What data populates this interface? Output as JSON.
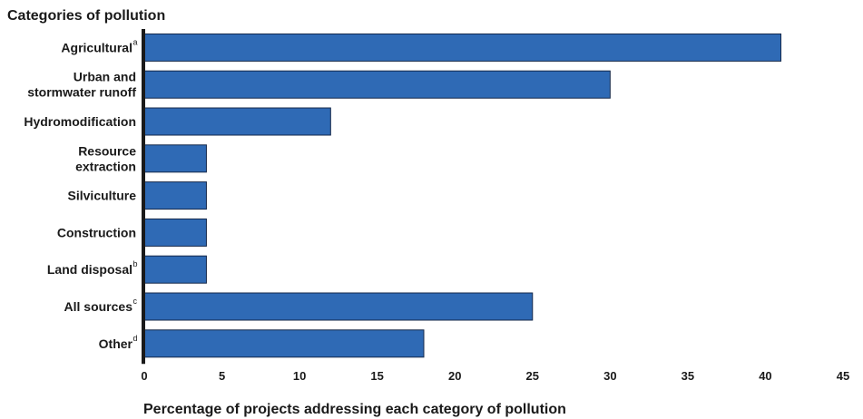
{
  "chart_data": {
    "type": "bar",
    "orientation": "horizontal",
    "title": "Categories of pollution",
    "xlabel": "Percentage of projects addressing each category of pollution",
    "xlim": [
      0,
      45
    ],
    "xticks": [
      0,
      5,
      10,
      15,
      20,
      25,
      30,
      35,
      40,
      45
    ],
    "grid": false,
    "bar_color": "#2f6ab5",
    "categories": [
      {
        "lines": [
          "Agricultural"
        ],
        "sup": "a"
      },
      {
        "lines": [
          "Urban and",
          "stormwater runoff"
        ],
        "sup": ""
      },
      {
        "lines": [
          "Hydromodification"
        ],
        "sup": ""
      },
      {
        "lines": [
          "Resource",
          "extraction"
        ],
        "sup": ""
      },
      {
        "lines": [
          "Silviculture"
        ],
        "sup": ""
      },
      {
        "lines": [
          "Construction"
        ],
        "sup": ""
      },
      {
        "lines": [
          "Land disposal"
        ],
        "sup": "b"
      },
      {
        "lines": [
          "All sources"
        ],
        "sup": "c"
      },
      {
        "lines": [
          "Other"
        ],
        "sup": "d"
      }
    ],
    "values": [
      41,
      30,
      12,
      4,
      4,
      4,
      4,
      25,
      18
    ]
  }
}
